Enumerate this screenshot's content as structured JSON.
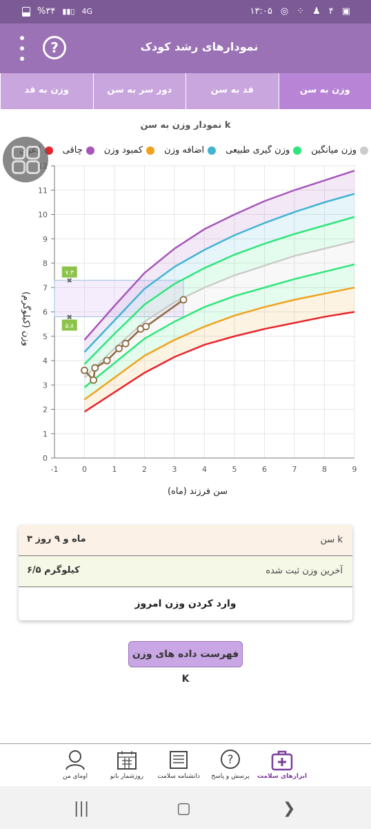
{
  "status_bar": {
    "time": "۱۳:۰۵",
    "battery": "%۳۴",
    "network": "4G",
    "notif_count": "۴"
  },
  "app_bar": {
    "title": "نمودارهای رشد کودک",
    "help_label": "?"
  },
  "tabs": [
    {
      "label": "وزن به سن",
      "active": true
    },
    {
      "label": "قد به سن",
      "active": false
    },
    {
      "label": "دور سر به سن",
      "active": false
    },
    {
      "label": "وزن به قد",
      "active": false
    }
  ],
  "chart_title": "نمودار وزن به سن k",
  "legend": [
    {
      "label": "وزن میانگین",
      "color": "#c9ccc9"
    },
    {
      "label": "وزن گیری طبیعی",
      "color": "#2ee67a"
    },
    {
      "label": "اضافه وزن",
      "color": "#41b3d3"
    },
    {
      "label": "کمبود وزن",
      "color": "#f2a11c"
    },
    {
      "label": "چاقی",
      "color": "#a656b9"
    },
    {
      "label": "لاغری",
      "color": "#e8242a"
    }
  ],
  "chart_data": {
    "type": "line",
    "xlabel": "سن فرزند (ماه)",
    "ylabel": "وزن (کیلوگرم)",
    "xlim": [
      -1,
      9
    ],
    "ylim": [
      0,
      12
    ],
    "x_ticks": [
      "-1",
      "0",
      "1",
      "2",
      "3",
      "4",
      "5",
      "6",
      "7",
      "8",
      "9"
    ],
    "y_ticks": [
      "0",
      "1",
      "2",
      "3",
      "4",
      "5",
      "6",
      "7",
      "8",
      "9",
      "10",
      "11",
      "12"
    ],
    "series": [
      {
        "name": "لاغری",
        "color": "#e8242a",
        "x": [
          0,
          1,
          2,
          3,
          4,
          5,
          6,
          7,
          8,
          9
        ],
        "y": [
          1.9,
          2.7,
          3.5,
          4.15,
          4.65,
          5.0,
          5.3,
          5.55,
          5.8,
          6.0
        ]
      },
      {
        "name": "کمبود وزن",
        "color": "#f2a11c",
        "x": [
          0,
          1,
          2,
          3,
          4,
          5,
          6,
          7,
          8,
          9
        ],
        "y": [
          2.4,
          3.3,
          4.2,
          4.85,
          5.4,
          5.85,
          6.2,
          6.5,
          6.75,
          7.0
        ]
      },
      {
        "name": "وزن گیری طبیعی",
        "color": "#2ee67a",
        "x": [
          0,
          1,
          2,
          3,
          4,
          5,
          6,
          7,
          8,
          9
        ],
        "y": [
          2.9,
          3.9,
          4.9,
          5.6,
          6.2,
          6.65,
          7.0,
          7.35,
          7.65,
          7.95
        ]
      },
      {
        "name": "وزن میانگین",
        "color": "#c9ccc9",
        "x": [
          0,
          1,
          2,
          3,
          4,
          5,
          6,
          7,
          8,
          9
        ],
        "y": [
          3.3,
          4.5,
          5.6,
          6.4,
          7.0,
          7.5,
          7.9,
          8.3,
          8.6,
          8.9
        ]
      },
      {
        "name": "وزن گیری طبیعی",
        "color": "#2ee67a",
        "x": [
          0,
          1,
          2,
          3,
          4,
          5,
          6,
          7,
          8,
          9
        ],
        "y": [
          3.85,
          5.1,
          6.3,
          7.15,
          7.8,
          8.35,
          8.8,
          9.2,
          9.55,
          9.9
        ]
      },
      {
        "name": "اضافه وزن",
        "color": "#41b3d3",
        "x": [
          0,
          1,
          2,
          3,
          4,
          5,
          6,
          7,
          8,
          9
        ],
        "y": [
          4.35,
          5.65,
          6.95,
          7.85,
          8.55,
          9.15,
          9.65,
          10.1,
          10.5,
          10.85
        ]
      },
      {
        "name": "چاقی",
        "color": "#a656b9",
        "x": [
          0,
          1,
          2,
          3,
          4,
          5,
          6,
          7,
          8,
          9
        ],
        "y": [
          4.85,
          6.25,
          7.6,
          8.6,
          9.4,
          10.0,
          10.55,
          11.0,
          11.4,
          11.8
        ]
      }
    ],
    "child_points": {
      "name": "k",
      "color": "#8a6a3e",
      "x": [
        0,
        0.3,
        0.35,
        0.75,
        1.15,
        1.37,
        1.87,
        2.05,
        3.3
      ],
      "y": [
        3.6,
        3.2,
        3.7,
        4.0,
        4.5,
        4.7,
        5.3,
        5.4,
        6.5
      ]
    },
    "range_box": {
      "x": [
        -1,
        3.3
      ],
      "y": [
        5.8,
        7.3
      ]
    },
    "range_labels": [
      "۷.۳",
      "۵.۸"
    ]
  },
  "info": {
    "age_label": "سن k",
    "age_value": "۳ ماه و ۹ روز",
    "weight_label": "آخرین وزن ثبت شده",
    "weight_value": "۶/۵ کیلوگرم",
    "enter_label": "وارد کردن وزن امروز"
  },
  "list_button": "فهرست داده های وزن K",
  "bottom_nav": [
    {
      "label": "ابزارهای سلامت",
      "active": true
    },
    {
      "label": "پرسش و پاسخ",
      "active": false
    },
    {
      "label": "دانشنامه سلامت",
      "active": false
    },
    {
      "label": "روزشمار بانو",
      "active": false
    },
    {
      "label": "اومای من",
      "active": false
    }
  ]
}
